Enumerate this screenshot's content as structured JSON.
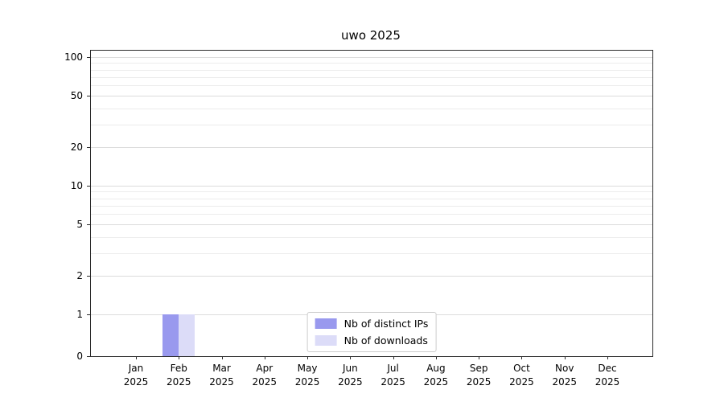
{
  "chart_data": {
    "type": "bar",
    "title": "uwo 2025",
    "categories": [
      "Jan",
      "Feb",
      "Mar",
      "Apr",
      "May",
      "Jun",
      "Jul",
      "Aug",
      "Sep",
      "Oct",
      "Nov",
      "Dec"
    ],
    "category_year": "2025",
    "series": [
      {
        "name": "Nb of distinct IPs",
        "color": "#9999ee",
        "values": [
          0,
          1,
          0,
          0,
          0,
          0,
          0,
          0,
          0,
          0,
          0,
          0
        ]
      },
      {
        "name": "Nb of downloads",
        "color": "#dcdcf8",
        "values": [
          0,
          1,
          0,
          0,
          0,
          0,
          0,
          0,
          0,
          0,
          0,
          0
        ]
      }
    ],
    "yticks": [
      0,
      1,
      2,
      5,
      10,
      20,
      50,
      100
    ],
    "ylim": [
      0,
      112
    ],
    "yscale": "symlog",
    "grid": "horizontal",
    "legend_position": "lower center"
  }
}
